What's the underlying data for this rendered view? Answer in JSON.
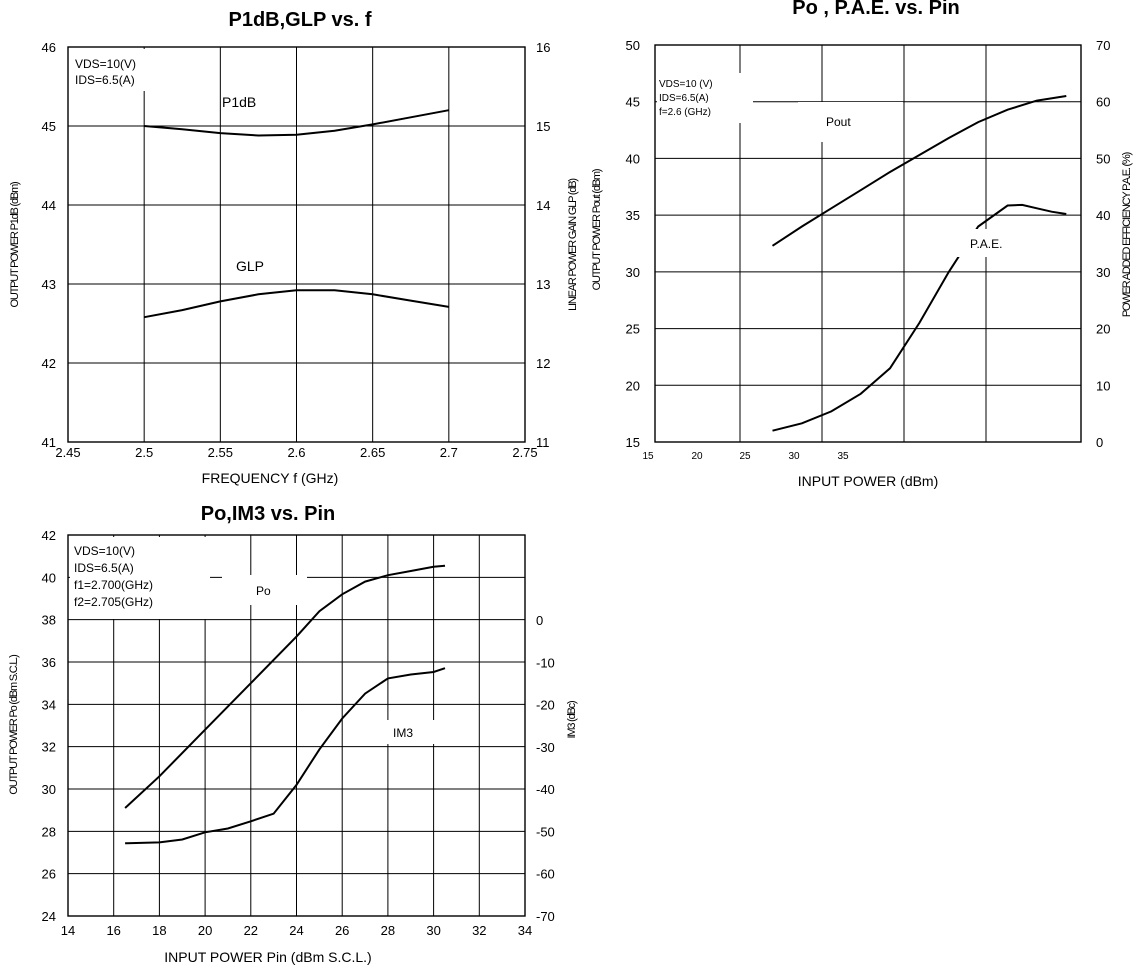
{
  "chart_data": [
    {
      "id": "c1",
      "type": "line",
      "title": "P1dB,GLP vs. f",
      "xlabel": "FREQUENCY f (GHz)",
      "ylabel": "OUTPUT POWER P1dB (dBm)",
      "ylabel_right": "LINEAR POWER GAIN GLP (dB)",
      "xlim": [
        2.45,
        2.75
      ],
      "ylim": [
        41,
        46
      ],
      "ylim_right": [
        11,
        16
      ],
      "x_ticks": [
        "2.45",
        "2.5",
        "2.55",
        "2.6",
        "2.65",
        "2.7",
        "2.75"
      ],
      "y_ticks": [
        "41",
        "42",
        "43",
        "44",
        "45",
        "46"
      ],
      "y_right_ticks": [
        "11",
        "12",
        "13",
        "14",
        "15",
        "16"
      ],
      "grid": true,
      "notes": [
        "VDS=10(V)",
        "IDS=6.5(A)"
      ],
      "series": [
        {
          "name": "P1dB",
          "axis": "left",
          "x": [
            2.5,
            2.525,
            2.55,
            2.575,
            2.6,
            2.625,
            2.65,
            2.675,
            2.7
          ],
          "y": [
            45.0,
            44.96,
            44.91,
            44.88,
            44.89,
            44.94,
            45.02,
            45.11,
            45.2
          ]
        },
        {
          "name": "GLP",
          "axis": "right",
          "x": [
            2.5,
            2.525,
            2.55,
            2.575,
            2.6,
            2.625,
            2.65,
            2.675,
            2.7
          ],
          "y": [
            12.58,
            12.67,
            12.78,
            12.87,
            12.92,
            12.92,
            12.87,
            12.79,
            12.71
          ]
        }
      ]
    },
    {
      "id": "c2",
      "type": "line",
      "title": "Po , P.A.E. vs. Pin",
      "xlabel": "INPUT POWER (dBm)",
      "ylabel": "OUTPUT POWER Pout (dBm)",
      "ylabel_right": "POWER ADDED EFFICIENCY P.A.E. (%)",
      "xlim": [
        15,
        44
      ],
      "ylim": [
        15,
        50
      ],
      "ylim_right": [
        0,
        70
      ],
      "x_ticks": [
        "15",
        "20",
        "25",
        "30",
        "35"
      ],
      "y_ticks": [
        "15",
        "20",
        "25",
        "30",
        "35",
        "40",
        "45",
        "50"
      ],
      "y_right_ticks": [
        "0",
        "10",
        "20",
        "30",
        "40",
        "50",
        "60",
        "70"
      ],
      "grid": true,
      "notes": [
        "VDS=10 (V)",
        "IDS=6.5(A)",
        "f=2.6 (GHz)"
      ],
      "series": [
        {
          "name": "Pout",
          "axis": "left",
          "x": [
            23,
            25,
            27,
            29,
            31,
            33,
            35,
            37,
            39,
            41,
            43
          ],
          "y": [
            32.3,
            34.0,
            35.6,
            37.2,
            38.8,
            40.3,
            41.8,
            43.2,
            44.3,
            45.1,
            45.5
          ]
        },
        {
          "name": "P.A.E.",
          "axis": "right",
          "x": [
            23,
            25,
            27,
            29,
            31,
            33,
            35,
            37,
            39,
            40,
            41,
            42,
            43
          ],
          "y": [
            2.0,
            3.3,
            5.4,
            8.5,
            13.0,
            21.0,
            30.0,
            38.0,
            41.7,
            41.8,
            41.2,
            40.6,
            40.2
          ]
        }
      ]
    },
    {
      "id": "c3",
      "type": "line",
      "title": "Po,IM3 vs. Pin",
      "xlabel": "INPUT POWER Pin (dBm S.C.L.)",
      "ylabel": "OUTPUT POWER Po (dBm S.C.L.)",
      "ylabel_right": "IM3 (dBc)",
      "xlim": [
        14,
        34
      ],
      "ylim": [
        24,
        42
      ],
      "ylim_right": [
        -70,
        0
      ],
      "x_ticks": [
        "14",
        "16",
        "18",
        "20",
        "22",
        "24",
        "26",
        "28",
        "30",
        "32",
        "34"
      ],
      "y_ticks": [
        "24",
        "26",
        "28",
        "30",
        "32",
        "34",
        "36",
        "38",
        "40",
        "42"
      ],
      "y_right_ticks": [
        "-70",
        "-60",
        "-50",
        "-40",
        "-30",
        "-20",
        "-10",
        "0"
      ],
      "grid": true,
      "notes": [
        "VDS=10(V)",
        "IDS=6.5(A)",
        "f1=2.700(GHz)",
        "f2=2.705(GHz)"
      ],
      "series": [
        {
          "name": "Po",
          "axis": "left",
          "x": [
            16.5,
            18,
            20,
            22,
            24,
            25,
            26,
            27,
            28,
            29,
            30,
            30.5
          ],
          "y": [
            29.1,
            30.6,
            32.8,
            35.0,
            37.2,
            38.4,
            39.2,
            39.8,
            40.1,
            40.3,
            40.5,
            40.55
          ]
        },
        {
          "name": "IM3",
          "axis": "right",
          "x": [
            16.5,
            18,
            19,
            20,
            21,
            22,
            23,
            24,
            25,
            26,
            27,
            28,
            29,
            30,
            30.5
          ],
          "y": [
            -52.8,
            -52.6,
            -51.9,
            -50.2,
            -49.3,
            -47.6,
            -45.8,
            -39.0,
            -30.6,
            -23.3,
            -17.4,
            -13.8,
            -12.9,
            -12.3,
            -11.4
          ]
        }
      ]
    }
  ]
}
